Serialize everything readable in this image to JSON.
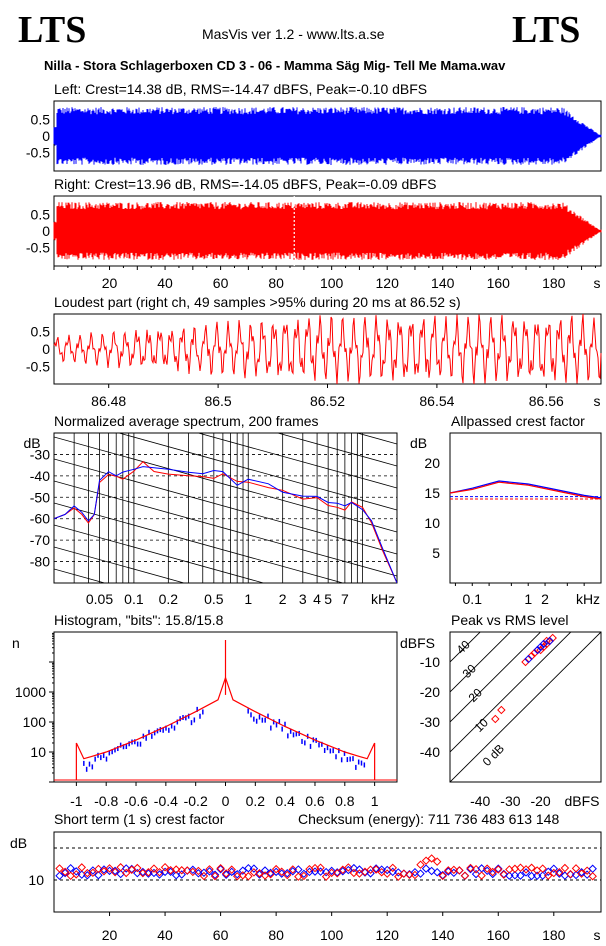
{
  "header": {
    "logo_left": "LTS",
    "logo_right": "LTS",
    "app_title": "MasVis ver 1.2 - www.lts.a.se",
    "file_title": "Nilla - Stora Schlagerboxen CD 3 - 06 - Mamma Säg Mig- Tell Me Mama.wav"
  },
  "colors": {
    "left": "#0000ff",
    "right": "#ff0000",
    "grid": "#000000"
  },
  "panels": {
    "left_wave_title": "Left: Crest=14.38 dB, RMS=-14.47 dBFS, Peak=-0.10 dBFS",
    "right_wave_title": "Right: Crest=13.96 dB, RMS=-14.05 dBFS, Peak=-0.09 dBFS",
    "loudest_title": "Loudest part (right ch, 49 samples >95% during 20 ms at 86.52 s)",
    "spectrum_title": "Normalized average spectrum, 200 frames",
    "allpass_title": "Allpassed crest factor",
    "histogram_title": "Histogram, \"bits\": 15.8/15.8",
    "pvr_title": "Peak vs RMS level",
    "crest_title": "Short term (1 s) crest factor",
    "checksum": "Checksum (energy):   711 736 483 613 148"
  },
  "chart_data": [
    {
      "type": "area",
      "name": "left-waveform",
      "title": "Left: Crest=14.38 dB, RMS=-14.47 dBFS, Peak=-0.10 dBFS",
      "xlabel": "s",
      "xlim": [
        0,
        197
      ],
      "ylim": [
        -1,
        1
      ],
      "yticks": [
        "0.5",
        "0",
        "-0.5"
      ]
    },
    {
      "type": "area",
      "name": "right-waveform",
      "title": "Right: Crest=13.96 dB, RMS=-14.05 dBFS, Peak=-0.09 dBFS",
      "xlabel": "s",
      "xlim": [
        0,
        197
      ],
      "ylim": [
        -1,
        1
      ],
      "yticks": [
        "0.5",
        "0",
        "-0.5"
      ],
      "xticks": [
        "20",
        "40",
        "60",
        "80",
        "100",
        "120",
        "140",
        "160",
        "180",
        "s"
      ],
      "marker_x": 86.52
    },
    {
      "type": "line",
      "name": "loudest-part",
      "title": "Loudest part (right ch, 49 samples >95% during 20 ms at 86.52 s)",
      "xlabel": "s",
      "xlim": [
        86.47,
        86.57
      ],
      "ylim": [
        -1,
        1
      ],
      "yticks": [
        "0.5",
        "0",
        "-0.5"
      ],
      "xticks": [
        "86.48",
        "86.5",
        "86.52",
        "86.54",
        "86.56",
        "s"
      ]
    },
    {
      "type": "line",
      "name": "spectrum",
      "title": "Normalized average spectrum, 200 frames",
      "xlabel": "kHz",
      "ylabel": "dB",
      "xscale": "log",
      "xlim": [
        0.02,
        20
      ],
      "ylim": [
        -90,
        -20
      ],
      "yticks": [
        "-30",
        "-40",
        "-50",
        "-60",
        "-70",
        "-80"
      ],
      "xticks": [
        "0.05",
        "0.1",
        "0.2",
        "0.5",
        "1",
        "2",
        "3",
        "4",
        "5",
        "7",
        "kHz"
      ],
      "x": [
        0.02,
        0.025,
        0.03,
        0.035,
        0.04,
        0.045,
        0.05,
        0.06,
        0.07,
        0.08,
        0.1,
        0.12,
        0.15,
        0.2,
        0.3,
        0.4,
        0.5,
        0.6,
        0.8,
        1,
        1.5,
        2,
        3,
        4,
        5,
        6,
        7,
        8,
        10,
        12,
        15,
        20
      ],
      "series": [
        {
          "values": [
            -60,
            -58,
            -55,
            -58,
            -62,
            -58,
            -45,
            -38,
            -42,
            -40,
            -38,
            -35,
            -37,
            -38,
            -40,
            -39,
            -40,
            -41,
            -44,
            -44,
            -46,
            -48,
            -50,
            -52,
            -54,
            -55,
            -55,
            -54,
            -55,
            -62,
            -75,
            -90
          ]
        },
        {
          "values": [
            -60,
            -58,
            -54,
            -57,
            -61,
            -58,
            -44,
            -37,
            -41,
            -39,
            -37,
            -34,
            -36,
            -37,
            -39,
            -38,
            -39,
            -40,
            -43,
            -43,
            -45,
            -47,
            -49,
            -51,
            -53,
            -54,
            -54,
            -53,
            -54,
            -61,
            -74,
            -90
          ]
        }
      ]
    },
    {
      "type": "line",
      "name": "allpassed-crest",
      "title": "Allpassed crest factor",
      "xlabel": "kHz",
      "ylabel": "dB",
      "xscale": "log",
      "xlim": [
        0.04,
        20
      ],
      "ylim": [
        0,
        25
      ],
      "yticks": [
        "20",
        "15",
        "10",
        "5"
      ],
      "xticks": [
        "0.1",
        "1",
        "2",
        "kHz"
      ],
      "x": [
        0.04,
        0.1,
        0.3,
        1,
        3,
        10,
        20
      ],
      "series": [
        {
          "values": [
            15,
            15.8,
            17,
            16.5,
            15.6,
            14.6,
            14.2
          ]
        },
        {
          "values": [
            15,
            15.6,
            16.8,
            16.3,
            15.4,
            14.4,
            14.0
          ]
        }
      ],
      "reference_lines": [
        14.4,
        14.0
      ]
    },
    {
      "type": "line",
      "name": "histogram",
      "title": "Histogram, \"bits\": 15.8/15.8",
      "ylabel": "n",
      "yscale": "log",
      "xlim": [
        -1.15,
        1.15
      ],
      "ylim": [
        1,
        100000
      ],
      "yticks": [
        "1000",
        "100",
        "10"
      ],
      "xticks": [
        "-1",
        "-0.8",
        "-0.6",
        "-0.4",
        "-0.2",
        "0",
        "0.2",
        "0.4",
        "0.6",
        "0.8",
        "1"
      ],
      "x": [
        -1,
        -0.95,
        -0.9,
        -0.8,
        -0.6,
        -0.4,
        -0.2,
        -0.05,
        0,
        0.05,
        0.2,
        0.4,
        0.6,
        0.8,
        0.9,
        0.95,
        1
      ],
      "series": [
        {
          "values": [
            20,
            6,
            7,
            10,
            25,
            70,
            220,
            550,
            3000,
            550,
            220,
            70,
            25,
            10,
            7,
            6,
            20
          ]
        }
      ]
    },
    {
      "type": "scatter",
      "name": "peak-vs-rms",
      "title": "Peak vs RMS level",
      "xlabel": "dBFS",
      "ylabel": "dBFS",
      "xlim": [
        -50,
        0
      ],
      "ylim": [
        -50,
        0
      ],
      "xticks": [
        "-40",
        "-30",
        "-20",
        "dBFS"
      ],
      "yticks": [
        "-10",
        "-20",
        "-30",
        "-40"
      ],
      "diagonal_labels": [
        "40",
        "30",
        "20",
        "10",
        "0 dB"
      ],
      "series": [
        {
          "name": "red",
          "points": [
            [
              -35,
              -29
            ],
            [
              -33,
              -26
            ],
            [
              -25,
              -10
            ],
            [
              -23,
              -8
            ],
            [
              -22,
              -7
            ],
            [
              -20,
              -6
            ],
            [
              -19,
              -5
            ],
            [
              -18,
              -4
            ],
            [
              -17,
              -3
            ],
            [
              -16,
              -2
            ],
            [
              -21,
              -6
            ],
            [
              -18,
              -3
            ]
          ]
        },
        {
          "name": "blue",
          "points": [
            [
              -24,
              -9
            ],
            [
              -21,
              -6
            ],
            [
              -19,
              -4
            ],
            [
              -17,
              -3
            ],
            [
              -20,
              -5
            ]
          ]
        }
      ]
    },
    {
      "type": "scatter",
      "name": "short-term-crest",
      "title": "Short term (1 s) crest factor",
      "ylabel": "dB",
      "xlabel": "s",
      "xlim": [
        0,
        197
      ],
      "ylim": [
        0,
        25
      ],
      "yticks": [
        "10"
      ],
      "xticks": [
        "20",
        "40",
        "60",
        "80",
        "100",
        "120",
        "140",
        "160",
        "180",
        "s"
      ],
      "reference_lines": [
        10,
        20
      ]
    }
  ]
}
